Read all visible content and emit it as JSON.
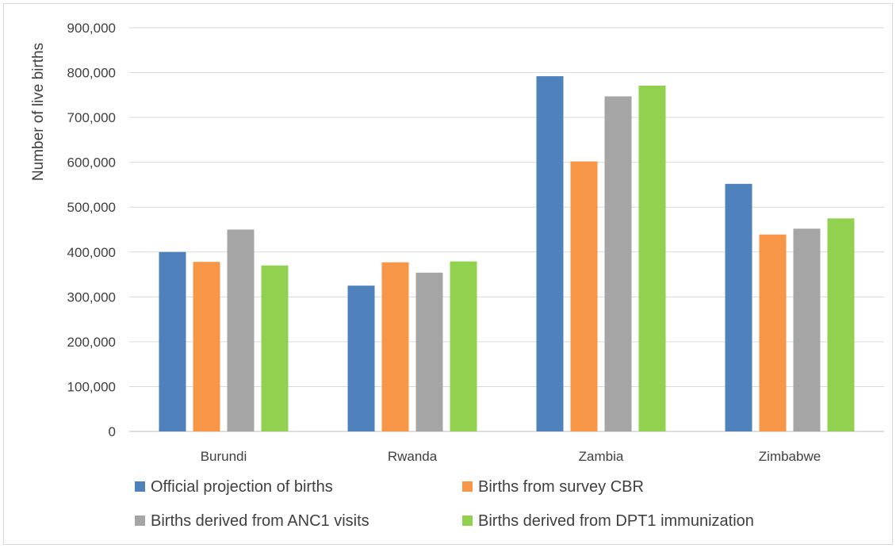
{
  "chart_data": {
    "type": "bar",
    "title": "",
    "xlabel": "",
    "ylabel": "Number of live births",
    "ylim": [
      0,
      900000
    ],
    "yticks": [
      "0",
      "100,000",
      "200,000",
      "300,000",
      "400,000",
      "500,000",
      "600,000",
      "700,000",
      "800,000",
      "900,000"
    ],
    "grid": true,
    "legend_position": "bottom",
    "categories": [
      "Burundi",
      "Rwanda",
      "Zambia",
      "Zimbabwe"
    ],
    "series": [
      {
        "name": "Official projection of births",
        "color": "#4f81bd",
        "values": [
          400000,
          325000,
          792000,
          552000
        ]
      },
      {
        "name": "Births from survey CBR",
        "color": "#f79646",
        "values": [
          378000,
          377000,
          602000,
          439000
        ]
      },
      {
        "name": "Births derived from ANC1 visits",
        "color": "#a5a5a5",
        "values": [
          450000,
          354000,
          747000,
          452000
        ]
      },
      {
        "name": "Births derived from DPT1 immunization",
        "color": "#92d050",
        "values": [
          370000,
          379000,
          771000,
          475000
        ]
      }
    ]
  }
}
